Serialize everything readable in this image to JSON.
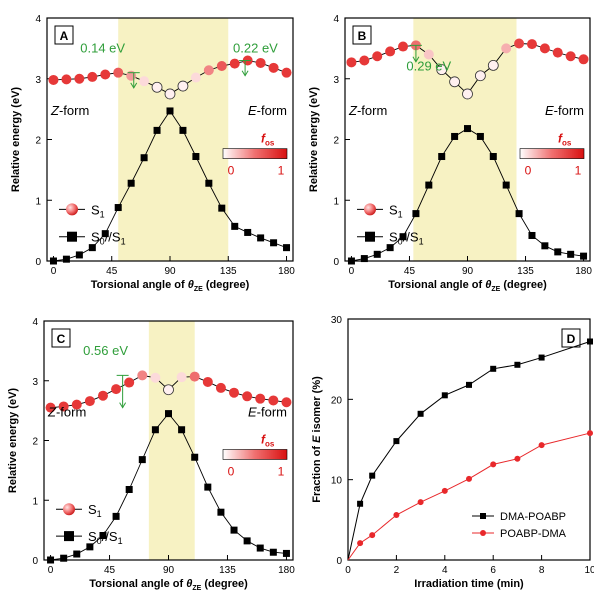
{
  "chart_data": [
    {
      "panel": "A",
      "type": "scatter",
      "xlabel_prefix": "Torsional angle of ",
      "xlabel_theta": "θ",
      "xlabel_sub": "ZE",
      "xlabel_suffix": " (degree)",
      "ylabel": "Relative energy (eV)",
      "xlim": [
        -5,
        185
      ],
      "ylim": [
        0,
        4
      ],
      "xticks": [
        "0",
        "45",
        "90",
        "135",
        "180"
      ],
      "yticks": [
        "0",
        "1",
        "2",
        "3",
        "4"
      ],
      "band": [
        50,
        135
      ],
      "series": [
        {
          "name": "S0//S1",
          "marker": "square",
          "x": [
            0,
            10,
            20,
            30,
            40,
            50,
            60,
            70,
            80,
            90,
            100,
            110,
            120,
            130,
            140,
            150,
            160,
            170,
            180
          ],
          "y": [
            0.0,
            0.03,
            0.1,
            0.22,
            0.45,
            0.88,
            1.28,
            1.7,
            2.15,
            2.47,
            2.15,
            1.72,
            1.28,
            0.87,
            0.57,
            0.47,
            0.38,
            0.3,
            0.22
          ]
        },
        {
          "name": "S1",
          "marker": "circle",
          "x": [
            0,
            10,
            20,
            30,
            40,
            50,
            60,
            70,
            80,
            90,
            100,
            110,
            120,
            130,
            140,
            150,
            160,
            170,
            180
          ],
          "y": [
            2.98,
            2.99,
            3.0,
            3.03,
            3.07,
            3.1,
            3.05,
            2.96,
            2.86,
            2.75,
            2.88,
            3.02,
            3.14,
            3.21,
            3.25,
            3.3,
            3.26,
            3.18,
            3.1
          ],
          "f": [
            0.85,
            0.85,
            0.85,
            0.85,
            0.85,
            0.7,
            0.4,
            0.1,
            0.0,
            0.0,
            0.0,
            0.1,
            0.5,
            0.7,
            0.85,
            0.85,
            0.85,
            0.85,
            0.85
          ]
        }
      ],
      "annotations": [
        {
          "text": "0.14 eV",
          "x": 38,
          "y": 3.5
        },
        {
          "text": "0.22 eV",
          "x": 156,
          "y": 3.5
        }
      ],
      "z_label": "Z",
      "e_label": "E",
      "form_label": "-form",
      "colorbar": {
        "f": "f",
        "os": "os",
        "min": "0",
        "max": "1"
      },
      "legend": [
        {
          "label": "S",
          "sub": "1"
        },
        {
          "label": "S",
          "sub": "0",
          "mid": "//S",
          "sub2": "1"
        }
      ]
    },
    {
      "panel": "B",
      "type": "scatter",
      "xlabel_prefix": "Torsional angle of ",
      "xlabel_theta": "θ",
      "xlabel_sub": "ZE",
      "xlabel_suffix": " (degree)",
      "ylabel": "Relative energy (eV)",
      "xlim": [
        -5,
        185
      ],
      "ylim": [
        0,
        4
      ],
      "xticks": [
        "0",
        "45",
        "90",
        "135",
        "180"
      ],
      "yticks": [
        "0",
        "1",
        "2",
        "3",
        "4"
      ],
      "band": [
        48,
        128
      ],
      "series": [
        {
          "name": "S0//S1",
          "marker": "square",
          "x": [
            0,
            10,
            20,
            30,
            40,
            50,
            60,
            70,
            80,
            90,
            100,
            110,
            120,
            130,
            140,
            150,
            160,
            170,
            180
          ],
          "y": [
            0.0,
            0.04,
            0.11,
            0.22,
            0.4,
            0.78,
            1.25,
            1.72,
            2.05,
            2.18,
            2.05,
            1.72,
            1.25,
            0.78,
            0.42,
            0.25,
            0.15,
            0.11,
            0.08
          ]
        },
        {
          "name": "S1",
          "marker": "circle",
          "x": [
            0,
            10,
            20,
            30,
            40,
            50,
            60,
            70,
            80,
            90,
            100,
            110,
            120,
            130,
            140,
            150,
            160,
            170,
            180
          ],
          "y": [
            3.27,
            3.3,
            3.37,
            3.45,
            3.53,
            3.55,
            3.4,
            3.15,
            2.95,
            2.75,
            3.05,
            3.22,
            3.5,
            3.58,
            3.57,
            3.5,
            3.43,
            3.37,
            3.32
          ],
          "f": [
            0.85,
            0.85,
            0.85,
            0.85,
            0.85,
            0.6,
            0.2,
            0.0,
            0.0,
            0.0,
            0.0,
            0.0,
            0.3,
            0.8,
            0.85,
            0.85,
            0.85,
            0.85,
            0.85
          ]
        }
      ],
      "annotations": [
        {
          "text": "0.29 eV",
          "x": 60,
          "y": 3.2
        }
      ],
      "z_label": "Z",
      "e_label": "E",
      "form_label": "-form",
      "colorbar": {
        "f": "f",
        "os": "os",
        "min": "0",
        "max": "1"
      },
      "legend": [
        {
          "label": "S",
          "sub": "1"
        },
        {
          "label": "S",
          "sub": "0",
          "mid": "//S",
          "sub2": "1"
        }
      ]
    },
    {
      "panel": "C",
      "type": "scatter",
      "xlabel_prefix": "Torsional angle of ",
      "xlabel_theta": "θ",
      "xlabel_sub": "ZE",
      "xlabel_suffix": " (degree)",
      "ylabel": "Relative energy (eV)",
      "xlim": [
        -5,
        185
      ],
      "ylim": [
        0,
        4
      ],
      "xticks": [
        "0",
        "45",
        "90",
        "135",
        "180"
      ],
      "yticks": [
        "0",
        "1",
        "2",
        "3",
        "4"
      ],
      "band": [
        75,
        110
      ],
      "series": [
        {
          "name": "S0//S1",
          "marker": "square",
          "x": [
            0,
            10,
            20,
            30,
            40,
            50,
            60,
            70,
            80,
            90,
            100,
            110,
            120,
            130,
            140,
            150,
            160,
            170,
            180
          ],
          "y": [
            0.0,
            0.03,
            0.1,
            0.22,
            0.41,
            0.73,
            1.18,
            1.68,
            2.18,
            2.45,
            2.18,
            1.72,
            1.22,
            0.8,
            0.5,
            0.32,
            0.2,
            0.13,
            0.11
          ]
        },
        {
          "name": "S1",
          "marker": "circle",
          "x": [
            0,
            10,
            20,
            30,
            40,
            50,
            60,
            70,
            80,
            90,
            100,
            110,
            120,
            130,
            140,
            150,
            160,
            170,
            180
          ],
          "y": [
            2.55,
            2.57,
            2.6,
            2.66,
            2.75,
            2.86,
            2.97,
            3.09,
            3.05,
            2.85,
            3.06,
            3.07,
            2.98,
            2.88,
            2.8,
            2.74,
            2.7,
            2.67,
            2.64
          ],
          "f": [
            0.85,
            0.85,
            0.85,
            0.85,
            0.85,
            0.85,
            0.85,
            0.5,
            0.1,
            0.0,
            0.1,
            0.6,
            0.85,
            0.85,
            0.85,
            0.85,
            0.85,
            0.85,
            0.85
          ]
        }
      ],
      "annotations": [
        {
          "text": "0.56 eV",
          "x": 42,
          "y": 3.5
        }
      ],
      "z_label": "Z",
      "e_label": "E",
      "form_label": "-form",
      "colorbar": {
        "f": "f",
        "os": "os",
        "min": "0",
        "max": "1"
      },
      "legend": [
        {
          "label": "S",
          "sub": "1"
        },
        {
          "label": "S",
          "sub": "0",
          "mid": "//S",
          "sub2": "1"
        }
      ]
    },
    {
      "panel": "D",
      "type": "line",
      "xlabel": "Irradiation time (min)",
      "ylabel_prefix": "Fraction of ",
      "ylabel_italic": "E",
      "ylabel_suffix": " isomer (%)",
      "xlim": [
        0,
        10
      ],
      "ylim": [
        0,
        30
      ],
      "xticks": [
        "0",
        "2",
        "4",
        "6",
        "8",
        "10"
      ],
      "yticks": [
        "0",
        "10",
        "20",
        "30"
      ],
      "series": [
        {
          "name": "DMA-POABP",
          "color": "#000000",
          "marker": "square",
          "x": [
            0,
            0.5,
            1,
            2,
            3,
            4,
            5,
            6,
            7,
            8,
            10
          ],
          "y": [
            0,
            7.0,
            10.5,
            14.8,
            18.2,
            20.5,
            21.8,
            23.8,
            24.3,
            25.2,
            27.2
          ]
        },
        {
          "name": "POABP-DMA",
          "color": "#e8282b",
          "marker": "circle",
          "x": [
            0,
            0.5,
            1,
            2,
            3,
            4,
            5,
            6,
            7,
            8,
            10
          ],
          "y": [
            0,
            2.1,
            3.1,
            5.6,
            7.2,
            8.6,
            10.1,
            11.9,
            12.6,
            14.3,
            15.8
          ]
        }
      ],
      "legend_position": "bottom-right"
    }
  ]
}
